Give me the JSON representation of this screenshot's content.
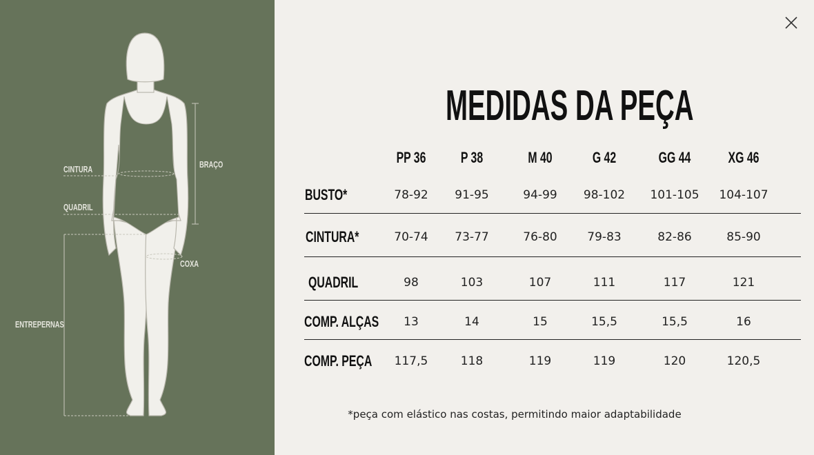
{
  "figure": {
    "labels": {
      "waist": "CINTURA",
      "hip": "QUADRIL",
      "arm": "BRAÇO",
      "thigh": "COXA",
      "inseam": "ENTREPERNAS"
    }
  },
  "header": {
    "title": "MEDIDAS DA PEÇA"
  },
  "table": {
    "columns": [
      "PP 36",
      "P 38",
      "M 40",
      "G 42",
      "GG 44",
      "XG 46"
    ],
    "rows": [
      [
        "BUSTO*",
        "78-92",
        "91-95",
        "94-99",
        "98-102",
        "101-105",
        "104-107"
      ],
      [
        "CINTURA*",
        "70-74",
        "73-77",
        "76-80",
        "79-83",
        "82-86",
        "85-90"
      ],
      [
        "QUADRIL",
        "98",
        "103",
        "107",
        "111",
        "117",
        "121"
      ],
      [
        "COMP. ALÇAS",
        "13",
        "14",
        "15",
        "15,5",
        "15,5",
        "16"
      ],
      [
        "COMP. PEÇA",
        "117,5",
        "118",
        "119",
        "119",
        "120",
        "120,5"
      ]
    ]
  },
  "footnote": "*peça com elástico nas costas, permitindo maior adaptabilidade"
}
